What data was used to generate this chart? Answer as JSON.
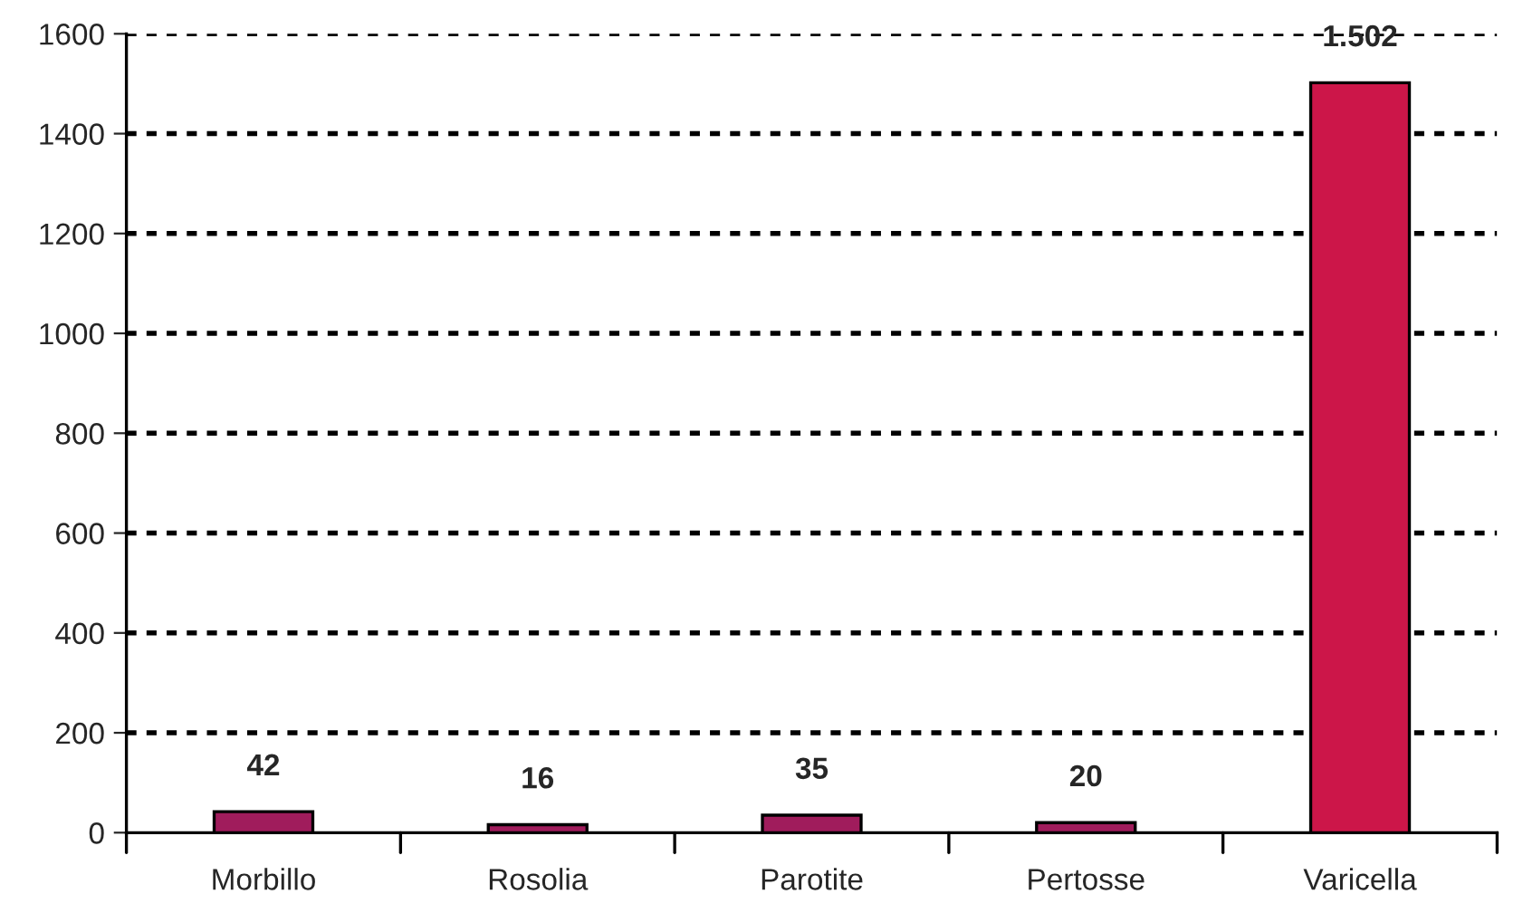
{
  "chart_data": {
    "type": "bar",
    "categories": [
      "Morbillo",
      "Rosolia",
      "Parotite",
      "Pertosse",
      "Varicella"
    ],
    "values": [
      42,
      16,
      35,
      20,
      1502
    ],
    "colors": [
      "#a01c5c",
      "#a01c5c",
      "#a01c5c",
      "#a01c5c",
      "#cc1649"
    ],
    "value_labels": [
      "42",
      "16",
      "35",
      "20",
      "1.502"
    ],
    "ylim": [
      0,
      1600
    ],
    "yticks": [
      0,
      200,
      400,
      600,
      800,
      1000,
      1200,
      1400,
      1600
    ],
    "grid": "y",
    "line_style": "dotted"
  }
}
